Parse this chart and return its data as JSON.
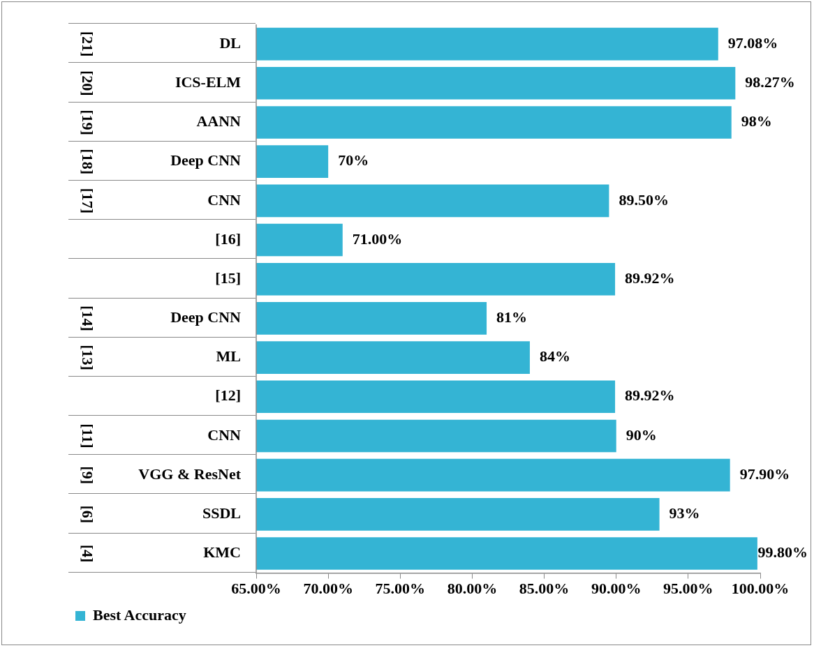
{
  "chart_data": {
    "type": "bar",
    "orientation": "horizontal",
    "categories": [
      "[21] DL",
      "[20] ICS-ELM",
      "[19] AANN",
      "[18] Deep CNN",
      "[17] CNN",
      "[16]",
      "[15]",
      "[14] Deep CNN",
      "[13] ML",
      "[12]",
      "[11] CNN",
      "[9] VGG & ResNet",
      "[6] SSDL",
      "[4] KMC"
    ],
    "series": [
      {
        "name": "Best Accuracy",
        "color": "#34b4d4",
        "values": [
          97.08,
          98.27,
          98,
          70,
          89.5,
          71,
          89.92,
          81,
          84,
          89.92,
          90,
          97.9,
          93,
          99.8
        ],
        "value_labels": [
          "97.08%",
          "98.27%",
          "98%",
          "70%",
          "89.50%",
          "71.00%",
          "89.92%",
          "81%",
          "84%",
          "89.92%",
          "90%",
          "97.90%",
          "93%",
          "99.80%"
        ]
      }
    ],
    "xlim": [
      65,
      100
    ],
    "xticks": [
      {
        "value": 65,
        "label": "65.00%"
      },
      {
        "value": 70,
        "label": "70.00%"
      },
      {
        "value": 75,
        "label": "75.00%"
      },
      {
        "value": 80,
        "label": "80.00%"
      },
      {
        "value": 85,
        "label": "85.00%"
      },
      {
        "value": 90,
        "label": "90.00%"
      },
      {
        "value": 95,
        "label": "95.00%"
      },
      {
        "value": 100,
        "label": "100.00%"
      }
    ],
    "grid": false,
    "legend": "bottom left"
  }
}
